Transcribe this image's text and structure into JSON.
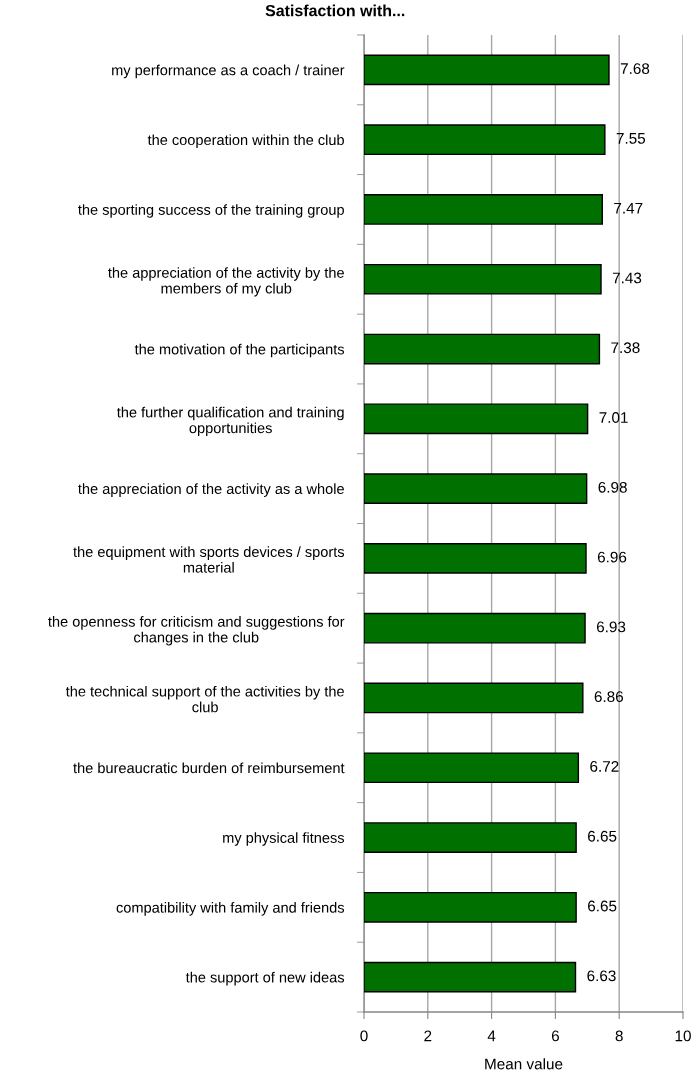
{
  "chart_data": {
    "type": "bar",
    "orientation": "horizontal",
    "title": "Satisfaction with...",
    "xlabel": "Mean value",
    "categories": [
      "my performance as a coach / trainer",
      "the cooperation within the club",
      "the sporting success of the training group",
      "the appreciation of the activity by the\nmembers of my club",
      "the motivation of the participants",
      "the further qualification and training\nopportunities",
      "the appreciation of the activity as a whole",
      "the equipment with sports devices / sports\nmaterial",
      "the openness for criticism and suggestions for\nchanges in the club",
      "the technical support of the activities by the\nclub",
      "the bureaucratic burden of reimbursement",
      "my physical fitness",
      "compatibility with family and friends",
      "the support of new ideas"
    ],
    "values": [
      7.68,
      7.55,
      7.47,
      7.43,
      7.38,
      7.01,
      6.98,
      6.96,
      6.93,
      6.86,
      6.72,
      6.65,
      6.65,
      6.63
    ],
    "color": "#007000",
    "xlim": [
      0,
      10
    ],
    "xticks": [
      0,
      2,
      4,
      6,
      8,
      10
    ],
    "grid": "x",
    "data_labels": true
  }
}
